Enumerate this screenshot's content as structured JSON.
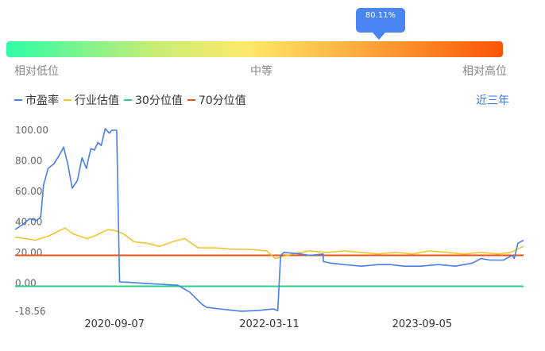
{
  "gauge": {
    "percentile_label": "80.11%",
    "percentile": 80.11,
    "low_label": "相对低位",
    "mid_label": "中等",
    "high_label": "相对高位",
    "colors": [
      "#2efca6",
      "#fde96b",
      "#fb5406"
    ]
  },
  "range_button": "近三年",
  "chart_data": {
    "type": "line",
    "ylim": [
      -18.56,
      100
    ],
    "yticks": [
      "100.00",
      "80.00",
      "60.00",
      "40.00",
      "20.00",
      "0.00",
      "-18.56"
    ],
    "ytick_values": [
      100,
      80,
      60,
      40,
      20,
      0,
      -18.56
    ],
    "xtick_labels": [
      "2020-09-07",
      "2022-03-11",
      "2023-09-05"
    ],
    "x_range": [
      "2019-09-20",
      "2024-08-30"
    ],
    "xtick_dates": [
      "2020-09-07",
      "2022-03-11",
      "2023-09-05"
    ],
    "grid": false,
    "legend_position": "top-left",
    "series": [
      {
        "name": "市盈率",
        "color": "#4a7eec",
        "dates": [
          "2019-09-20",
          "2019-10-15",
          "2019-11-10",
          "2019-12-05",
          "2019-12-20",
          "2019-12-30",
          "2020-01-15",
          "2020-02-05",
          "2020-02-25",
          "2020-03-10",
          "2020-03-25",
          "2020-04-10",
          "2020-04-28",
          "2020-05-15",
          "2020-05-30",
          "2020-06-15",
          "2020-06-28",
          "2020-07-10",
          "2020-07-22",
          "2020-08-05",
          "2020-08-20",
          "2020-08-28",
          "2020-09-15",
          "2020-09-25",
          "2020-10-01",
          "2020-10-10",
          "2020-10-11",
          "2020-10-20",
          "2021-01-15",
          "2021-04-20",
          "2021-06-01",
          "2021-07-15",
          "2021-08-01",
          "2021-09-15",
          "2021-12-01",
          "2022-02-01",
          "2022-03-25",
          "2022-04-10",
          "2022-04-20",
          "2022-05-01",
          "2022-07-01",
          "2022-08-01",
          "2022-09-18",
          "2022-09-19",
          "2022-10-15",
          "2022-12-01",
          "2023-02-01",
          "2023-04-01",
          "2023-05-15",
          "2023-07-01",
          "2023-09-01",
          "2023-11-01",
          "2024-01-01",
          "2024-03-01",
          "2024-04-01",
          "2024-05-01",
          "2024-06-20",
          "2024-07-20",
          "2024-07-28",
          "2024-08-10",
          "2024-08-30"
        ],
        "values": [
          35,
          38,
          42,
          41,
          43,
          64,
          75,
          78,
          84,
          89,
          78,
          62,
          67,
          82,
          75,
          88,
          87,
          92,
          90,
          101,
          98,
          100,
          100,
          0.8,
          0.6,
          0.5,
          0.4,
          0.5,
          -0.5,
          -1.5,
          -6,
          -14,
          -16,
          -17,
          -18.5,
          -18,
          -17,
          -18.2,
          18,
          20,
          19,
          18,
          19,
          14,
          13,
          12,
          11,
          12,
          12,
          11,
          11,
          12,
          11,
          13,
          16,
          15,
          15,
          18,
          16,
          26,
          28
        ]
      },
      {
        "name": "行业估值",
        "color": "#f4c430",
        "dates": [
          "2019-09-20",
          "2019-12-01",
          "2020-01-20",
          "2020-03-15",
          "2020-04-15",
          "2020-06-01",
          "2020-07-01",
          "2020-08-15",
          "2020-09-15",
          "2020-10-10",
          "2020-11-15",
          "2021-01-01",
          "2021-02-15",
          "2021-04-01",
          "2021-05-15",
          "2021-07-01",
          "2021-09-01",
          "2021-11-01",
          "2022-01-01",
          "2022-03-01",
          "2022-04-01",
          "2022-06-01",
          "2022-08-01",
          "2022-10-01",
          "2022-12-01",
          "2023-02-01",
          "2023-04-01",
          "2023-06-01",
          "2023-08-01",
          "2023-10-01",
          "2023-12-01",
          "2024-02-01",
          "2024-04-01",
          "2024-06-01",
          "2024-07-15",
          "2024-08-30"
        ],
        "values": [
          30,
          28,
          31,
          36,
          32,
          29,
          31,
          35,
          34,
          32,
          27,
          26,
          24,
          27,
          29,
          23,
          23,
          22,
          22,
          21,
          16,
          19,
          21,
          20,
          21,
          20,
          19,
          20,
          19,
          21,
          20,
          19,
          20,
          19,
          20,
          24
        ]
      },
      {
        "name": "30分位值",
        "color": "#2fcf8f",
        "dates": [
          "2019-09-20",
          "2024-08-30"
        ],
        "values": [
          -2.2,
          -2.2
        ]
      },
      {
        "name": "70分位值",
        "color": "#e8511a",
        "dates": [
          "2019-09-20",
          "2024-08-30"
        ],
        "values": [
          18.1,
          18.1
        ]
      }
    ]
  }
}
